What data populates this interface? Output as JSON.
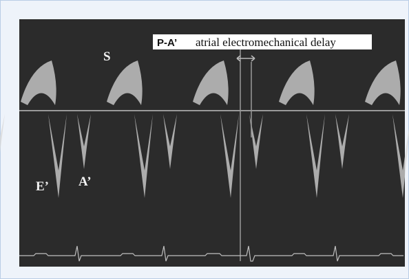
{
  "labels": {
    "s": "S",
    "e_prime": "E’",
    "a_prime": "A’"
  },
  "annotation": {
    "interval": "P-A’",
    "description": "atrial electromechanical delay"
  }
}
